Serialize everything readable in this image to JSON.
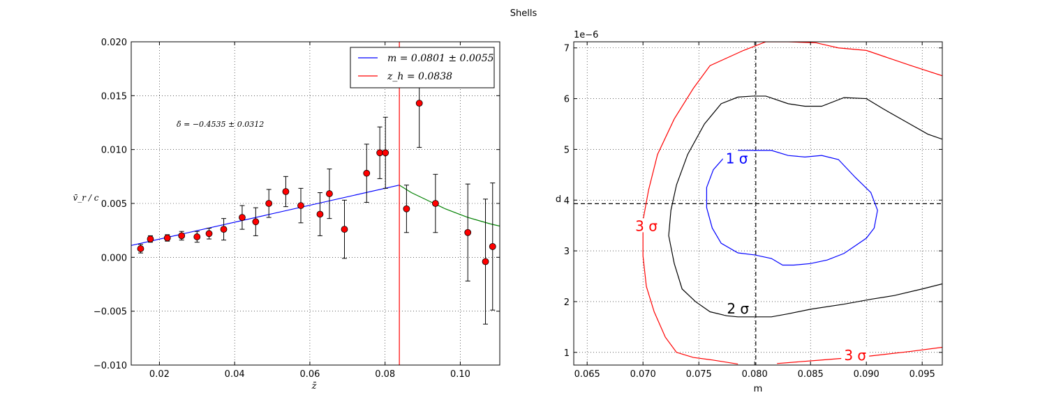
{
  "figure_title": "Shells",
  "chart_data": [
    {
      "type": "scatter",
      "xlabel": "z̄",
      "ylabel": "v̄_r / c",
      "xlim": [
        0.0125,
        0.1105
      ],
      "ylim": [
        -0.01,
        0.02
      ],
      "grid": true,
      "x_ticks": [
        "0.02",
        "0.04",
        "0.06",
        "0.08",
        "0.10"
      ],
      "y_ticks": [
        "0.020",
        "0.015",
        "0.010",
        "0.005",
        "0.000",
        "−0.005",
        "−0.010"
      ],
      "annotation": "δ̄ = −0.4535 ± 0.0312",
      "legend_position": "upper-right",
      "legend": [
        {
          "label": "m = 0.0801 ± 0.0055",
          "color": "#0000ff"
        },
        {
          "label": "z_h = 0.0838",
          "color": "#ff0000"
        }
      ],
      "points": [
        {
          "x": 0.015,
          "y": 0.0008,
          "err": 0.0004
        },
        {
          "x": 0.0176,
          "y": 0.0017,
          "err": 0.0003
        },
        {
          "x": 0.0221,
          "y": 0.0018,
          "err": 0.0003
        },
        {
          "x": 0.0259,
          "y": 0.002,
          "err": 0.0004
        },
        {
          "x": 0.03,
          "y": 0.0019,
          "err": 0.0005
        },
        {
          "x": 0.0332,
          "y": 0.0022,
          "err": 0.0005
        },
        {
          "x": 0.0371,
          "y": 0.0026,
          "err": 0.001
        },
        {
          "x": 0.042,
          "y": 0.0037,
          "err": 0.0011
        },
        {
          "x": 0.0456,
          "y": 0.0033,
          "err": 0.0013
        },
        {
          "x": 0.0491,
          "y": 0.005,
          "err": 0.0013
        },
        {
          "x": 0.0536,
          "y": 0.0061,
          "err": 0.0014
        },
        {
          "x": 0.0576,
          "y": 0.0048,
          "err": 0.0016
        },
        {
          "x": 0.0627,
          "y": 0.004,
          "err": 0.002
        },
        {
          "x": 0.0652,
          "y": 0.0059,
          "err": 0.0023
        },
        {
          "x": 0.0692,
          "y": 0.0026,
          "err": 0.0027
        },
        {
          "x": 0.0751,
          "y": 0.0078,
          "err": 0.0027
        },
        {
          "x": 0.0786,
          "y": 0.0097,
          "err": 0.0024
        },
        {
          "x": 0.0801,
          "y": 0.0097,
          "err": 0.0033
        },
        {
          "x": 0.0857,
          "y": 0.0045,
          "err": 0.0022
        },
        {
          "x": 0.0891,
          "y": 0.0143,
          "err": 0.0041
        },
        {
          "x": 0.0934,
          "y": 0.005,
          "err": 0.0027
        },
        {
          "x": 0.102,
          "y": 0.0023,
          "err": 0.0045
        },
        {
          "x": 0.1067,
          "y": -0.0004,
          "err": 0.0058
        },
        {
          "x": 0.1086,
          "y": 0.001,
          "err": 0.0059
        }
      ],
      "fit_line": {
        "color": "#0000ff",
        "x": [
          0.0125,
          0.0838
        ],
        "y": [
          0.0011,
          0.0067
        ]
      },
      "vertical_line": {
        "color": "#ff0000",
        "x": 0.0838
      },
      "tail_curve": {
        "color": "#008000",
        "x": [
          0.0838,
          0.087,
          0.09,
          0.093,
          0.096,
          0.099,
          0.102,
          0.105,
          0.108,
          0.1105
        ],
        "y": [
          0.0067,
          0.006,
          0.0055,
          0.005,
          0.0045,
          0.0041,
          0.0037,
          0.0034,
          0.0031,
          0.0029
        ]
      }
    },
    {
      "type": "contour",
      "xlabel": "m",
      "ylabel": "d",
      "y_offset_label": "1e−6",
      "xlim": [
        0.0638,
        0.0968
      ],
      "ylim": [
        0.75,
        7.12
      ],
      "grid": true,
      "x_ticks": [
        "0.065",
        "0.070",
        "0.075",
        "0.080",
        "0.085",
        "0.090",
        "0.095"
      ],
      "y_ticks": [
        "7",
        "6",
        "5",
        "4",
        "3",
        "2",
        "1"
      ],
      "crosshair": {
        "x": 0.0801,
        "y": 3.93
      },
      "contours": [
        {
          "level": "1 σ",
          "color": "#0000ff",
          "x": [
            0.0785,
            0.08,
            0.0815,
            0.083,
            0.0845,
            0.086,
            0.0875,
            0.089,
            0.0904,
            0.091,
            0.0907,
            0.09,
            0.089,
            0.088,
            0.0865,
            0.085,
            0.0835,
            0.0825,
            0.0815,
            0.08,
            0.0785,
            0.077,
            0.0762,
            0.0757,
            0.0757,
            0.0763,
            0.0775
          ],
          "y": [
            4.98,
            4.98,
            4.98,
            4.88,
            4.85,
            4.88,
            4.8,
            4.45,
            4.15,
            3.8,
            3.45,
            3.25,
            3.1,
            2.95,
            2.82,
            2.75,
            2.72,
            2.72,
            2.85,
            2.92,
            2.96,
            3.15,
            3.45,
            3.85,
            4.25,
            4.6,
            4.9
          ],
          "label_x": 0.0784,
          "label_y": 4.78
        },
        {
          "level": "2 σ",
          "color": "#000000",
          "x": [
            0.0968,
            0.0955,
            0.0935,
            0.0915,
            0.09,
            0.088,
            0.086,
            0.0845,
            0.083,
            0.081,
            0.0798,
            0.0785,
            0.077,
            0.0755,
            0.074,
            0.073,
            0.0725,
            0.0723,
            0.0728,
            0.0735,
            0.0747,
            0.076,
            0.0775,
            0.0785,
            0.0795,
            0.0815,
            0.083,
            0.085,
            0.088,
            0.0905,
            0.0925,
            0.095,
            0.0968
          ],
          "y": [
            5.2,
            5.3,
            5.55,
            5.8,
            6.0,
            6.02,
            5.85,
            5.85,
            5.9,
            6.05,
            6.05,
            6.03,
            5.9,
            5.5,
            4.9,
            4.3,
            3.8,
            3.3,
            2.75,
            2.25,
            2.0,
            1.8,
            1.72,
            1.7,
            1.7,
            1.7,
            1.76,
            1.85,
            1.95,
            2.05,
            2.12,
            2.25,
            2.35
          ],
          "label_x": 0.0785,
          "label_y": 1.82
        },
        {
          "level": "3 σ",
          "color": "#ff0000",
          "x": [
            0.0968,
            0.094,
            0.09,
            0.0875,
            0.0855,
            0.083,
            0.081,
            0.079,
            0.076,
            0.0745,
            0.0728,
            0.0713,
            0.0705,
            0.07,
            0.07,
            0.0703,
            0.071,
            0.072,
            0.073,
            0.0745,
            0.0762,
            0.0785
          ],
          "y": [
            6.45,
            6.65,
            6.95,
            7.0,
            7.1,
            7.12,
            7.12,
            6.95,
            6.65,
            6.2,
            5.6,
            4.9,
            4.2,
            3.6,
            2.9,
            2.3,
            1.8,
            1.3,
            1.0,
            0.9,
            0.85,
            0.77
          ],
          "label_x": 0.0703,
          "label_y": 3.45
        },
        {
          "level": "3 σ",
          "color": "#ff0000",
          "x": [
            0.082,
            0.086,
            0.09,
            0.094,
            0.0968
          ],
          "y": [
            0.78,
            0.85,
            0.92,
            1.02,
            1.1
          ],
          "label_x": 0.089,
          "label_y": 0.9
        }
      ]
    }
  ]
}
